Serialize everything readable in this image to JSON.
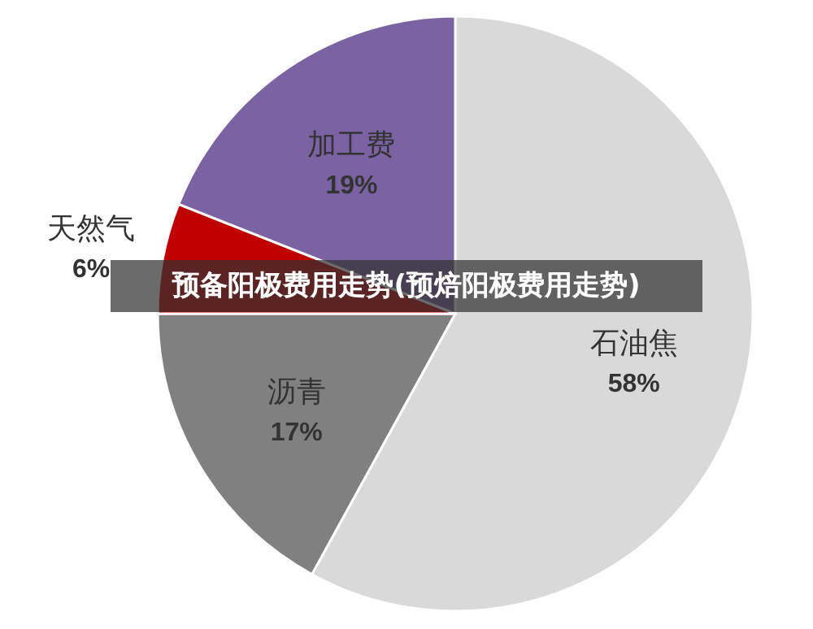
{
  "chart_data": {
    "type": "pie",
    "title": "预备阳极费用走势(预焙阳极费用走势)",
    "categories": [
      "石油焦",
      "沥青",
      "天然气",
      "加工费"
    ],
    "values": [
      58,
      17,
      6,
      19
    ],
    "colors": [
      "#d9d9d9",
      "#808080",
      "#c00000",
      "#7b62a3"
    ],
    "value_labels": [
      "58%",
      "17%",
      "6%",
      "19%"
    ]
  }
}
